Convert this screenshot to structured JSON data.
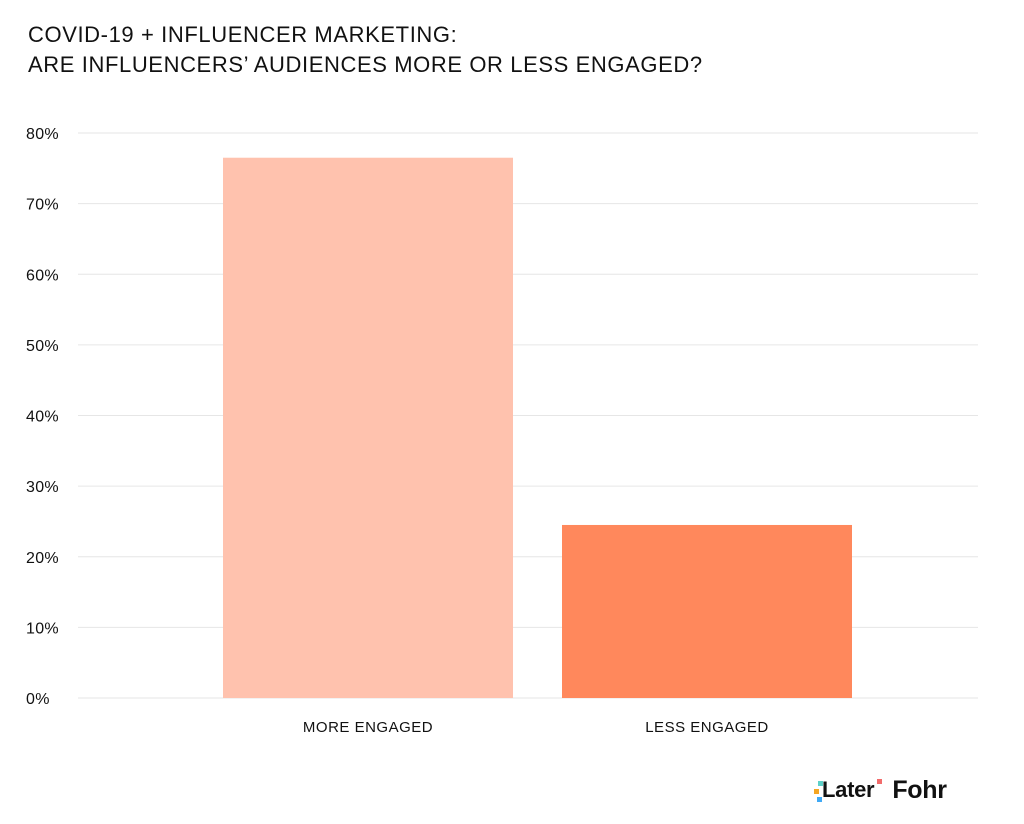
{
  "title": {
    "line1": "COVID-19 + INFLUENCER MARKETING:",
    "line2": "ARE INFLUENCERS’ AUDIENCES MORE OR LESS ENGAGED?"
  },
  "chart_data": {
    "type": "bar",
    "title": "COVID-19 + INFLUENCER MARKETING: ARE INFLUENCERS’ AUDIENCES MORE OR LESS ENGAGED?",
    "categories": [
      "MORE ENGAGED",
      "LESS ENGAGED"
    ],
    "values": [
      76.5,
      24.5
    ],
    "bar_colors": [
      "#ffc2ae",
      "#ff885c"
    ],
    "xlabel": "",
    "ylabel": "",
    "ylim": [
      0,
      80
    ],
    "yticks": [
      0,
      10,
      20,
      30,
      40,
      50,
      60,
      70,
      80
    ],
    "ytick_labels": [
      "0%",
      "10%",
      "20%",
      "30%",
      "40%",
      "50%",
      "60%",
      "70%",
      "80%"
    ],
    "grid": true,
    "legend": "none"
  },
  "logos": {
    "later": "Later",
    "fohr": "Fohr",
    "later_pixel_colors": [
      "#5dd1c9",
      "#f5a623",
      "#3fa9f5",
      "#f26b6b"
    ]
  },
  "colors": {
    "gridline": "#e6e6e6",
    "axis_text": "#111111",
    "background": "#ffffff"
  }
}
